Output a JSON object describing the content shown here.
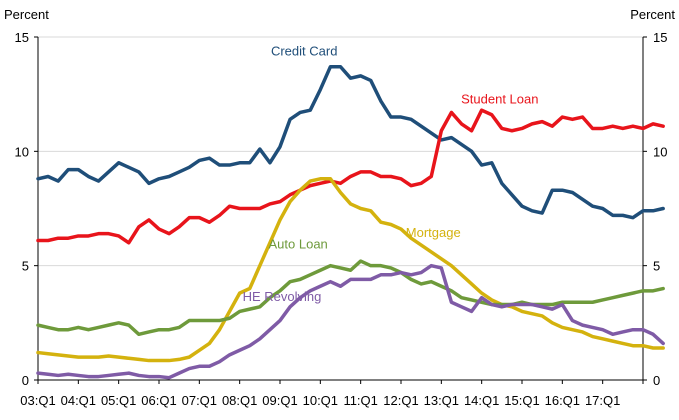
{
  "chart_data": {
    "type": "line",
    "y_unit_left": "Percent",
    "y_unit_right": "Percent",
    "ylim": [
      0,
      15
    ],
    "yticks": [
      0,
      5,
      10,
      15
    ],
    "x_tick_labels": [
      "03:Q1",
      "04:Q1",
      "05:Q1",
      "06:Q1",
      "07:Q1",
      "08:Q1",
      "09:Q1",
      "10:Q1",
      "11:Q1",
      "12:Q1",
      "13:Q1",
      "14:Q1",
      "15:Q1",
      "16:Q1",
      "17:Q1"
    ],
    "x_start_year": 2003,
    "x_end_year": 2018,
    "quarters_per_year": 4,
    "grid": "horizontal",
    "legend": "none",
    "series": [
      {
        "name": "Credit Card",
        "color": "#1f4e79",
        "values": [
          8.8,
          8.9,
          8.7,
          9.2,
          9.2,
          8.9,
          8.7,
          9.1,
          9.5,
          9.3,
          9.1,
          8.6,
          8.8,
          8.9,
          9.1,
          9.3,
          9.6,
          9.7,
          9.4,
          9.4,
          9.5,
          9.5,
          10.1,
          9.5,
          10.2,
          11.4,
          11.7,
          11.8,
          12.7,
          13.7,
          13.7,
          13.2,
          13.3,
          13.1,
          12.2,
          11.5,
          11.5,
          11.4,
          11.1,
          10.8,
          10.5,
          10.6,
          10.3,
          10.0,
          9.4,
          9.5,
          8.6,
          8.1,
          7.6,
          7.4,
          7.3,
          8.3,
          8.3,
          8.2,
          7.9,
          7.6,
          7.5,
          7.2,
          7.2,
          7.1,
          7.4,
          7.4,
          7.5
        ]
      },
      {
        "name": "Student Loan",
        "color": "#e8141b",
        "values": [
          6.1,
          6.1,
          6.2,
          6.2,
          6.3,
          6.3,
          6.4,
          6.4,
          6.3,
          6.0,
          6.7,
          7.0,
          6.6,
          6.4,
          6.7,
          7.1,
          7.1,
          6.9,
          7.2,
          7.6,
          7.5,
          7.5,
          7.5,
          7.7,
          7.8,
          8.1,
          8.3,
          8.5,
          8.6,
          8.7,
          8.6,
          8.9,
          9.1,
          9.1,
          8.9,
          8.9,
          8.8,
          8.5,
          8.6,
          8.9,
          10.9,
          11.7,
          11.2,
          10.9,
          11.8,
          11.6,
          11.0,
          10.9,
          11.0,
          11.2,
          11.3,
          11.1,
          11.5,
          11.4,
          11.5,
          11.0,
          11.0,
          11.1,
          11.0,
          11.1,
          11.0,
          11.2,
          11.1
        ]
      },
      {
        "name": "Mortgage",
        "color": "#d4b20e",
        "values": [
          1.2,
          1.15,
          1.1,
          1.05,
          1.0,
          1.0,
          1.0,
          1.05,
          1.0,
          0.95,
          0.9,
          0.85,
          0.85,
          0.85,
          0.9,
          1.0,
          1.3,
          1.6,
          2.2,
          3.0,
          3.8,
          4.0,
          5.0,
          6.0,
          7.0,
          7.8,
          8.3,
          8.7,
          8.8,
          8.8,
          8.2,
          7.7,
          7.5,
          7.4,
          6.9,
          6.8,
          6.6,
          6.2,
          5.9,
          5.6,
          5.3,
          5.0,
          4.6,
          4.2,
          3.8,
          3.5,
          3.3,
          3.2,
          3.0,
          2.9,
          2.8,
          2.5,
          2.3,
          2.2,
          2.1,
          1.9,
          1.8,
          1.7,
          1.6,
          1.5,
          1.5,
          1.4,
          1.4
        ]
      },
      {
        "name": "Auto Loan",
        "color": "#6e9a3b",
        "values": [
          2.4,
          2.3,
          2.2,
          2.2,
          2.3,
          2.2,
          2.3,
          2.4,
          2.5,
          2.4,
          2.0,
          2.1,
          2.2,
          2.2,
          2.3,
          2.6,
          2.6,
          2.6,
          2.6,
          2.7,
          3.0,
          3.1,
          3.2,
          3.6,
          3.9,
          4.3,
          4.4,
          4.6,
          4.8,
          5.0,
          4.9,
          4.8,
          5.2,
          5.0,
          5.0,
          4.9,
          4.7,
          4.4,
          4.2,
          4.3,
          4.1,
          3.9,
          3.6,
          3.5,
          3.4,
          3.3,
          3.3,
          3.3,
          3.4,
          3.3,
          3.3,
          3.3,
          3.4,
          3.4,
          3.4,
          3.4,
          3.5,
          3.6,
          3.7,
          3.8,
          3.9,
          3.9,
          4.0
        ]
      },
      {
        "name": "HE Revolving",
        "color": "#7f5ba6",
        "values": [
          0.3,
          0.25,
          0.2,
          0.25,
          0.2,
          0.15,
          0.15,
          0.2,
          0.25,
          0.3,
          0.2,
          0.15,
          0.15,
          0.1,
          0.3,
          0.5,
          0.6,
          0.6,
          0.8,
          1.1,
          1.3,
          1.5,
          1.8,
          2.2,
          2.6,
          3.2,
          3.6,
          3.9,
          4.1,
          4.3,
          4.1,
          4.4,
          4.4,
          4.4,
          4.6,
          4.6,
          4.7,
          4.6,
          4.7,
          5.0,
          4.9,
          3.4,
          3.2,
          3.0,
          3.6,
          3.3,
          3.2,
          3.3,
          3.3,
          3.3,
          3.2,
          3.1,
          3.3,
          2.6,
          2.4,
          2.3,
          2.2,
          2.0,
          2.1,
          2.2,
          2.2,
          2.0,
          1.6
        ]
      }
    ],
    "annotations": [
      {
        "text": "Credit Card",
        "series": "Credit Card",
        "year": 2009.6,
        "y": 14.2
      },
      {
        "text": "Student Loan",
        "series": "Student Loan",
        "year": 2014.45,
        "y": 12.1
      },
      {
        "text": "Mortgage",
        "series": "Mortgage",
        "year": 2012.8,
        "y": 6.25
      },
      {
        "text": "Auto Loan",
        "series": "Auto Loan",
        "year": 2009.45,
        "y": 5.75
      },
      {
        "text": "HE Revolving",
        "series": "HE Revolving",
        "year": 2009.05,
        "y": 3.45
      }
    ]
  }
}
